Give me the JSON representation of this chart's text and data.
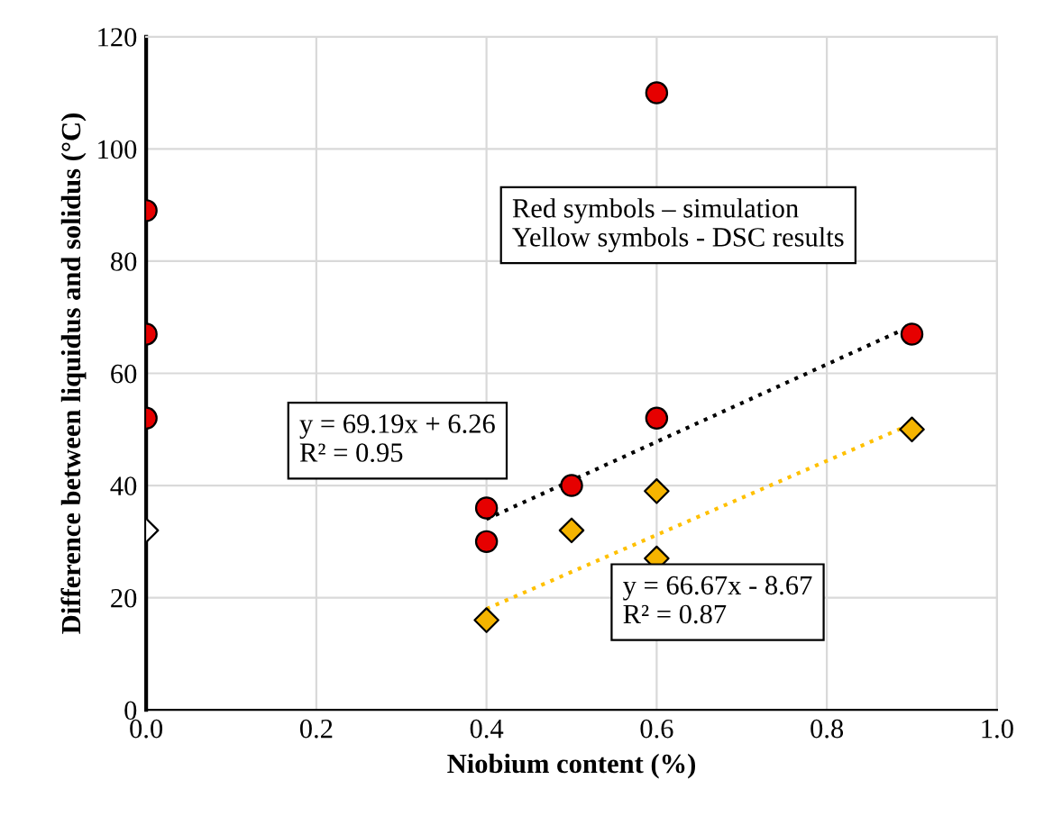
{
  "chart_data": {
    "type": "scatter",
    "xlabel": "Niobium content (%)",
    "ylabel": "Difference between liquidus and solidus (°C)",
    "xlim": [
      0,
      1.0
    ],
    "ylim": [
      0,
      120
    ],
    "xticks": [
      {
        "value": 0,
        "label": "0.0"
      },
      0.2,
      0.4,
      0.6,
      0.8,
      {
        "value": 1.0,
        "label": "1.0"
      }
    ],
    "yticks": [
      0,
      20,
      40,
      60,
      80,
      100,
      120
    ],
    "grid": true,
    "series": [
      {
        "marker": "circle",
        "color": "#e60000",
        "x": [
          0,
          0,
          0,
          0.4,
          0.4,
          0.5,
          0.6,
          0.6,
          0.9
        ],
        "values": [
          89,
          67,
          52,
          36,
          30,
          40,
          110,
          52,
          67
        ]
      },
      {
        "marker": "diamond",
        "color": "#f5b400",
        "colors": [
          "#ffffff",
          "#f5b400",
          "#f5b400",
          "#f5b400",
          "#f5b400",
          "#f5b400"
        ],
        "x": [
          0,
          0.4,
          0.5,
          0.6,
          0.6,
          0.9
        ],
        "values": [
          32,
          16,
          32,
          39,
          27,
          50
        ]
      },
      {
        "type": "line",
        "marker": "none",
        "line_style": "dotted",
        "color": "#000000",
        "x": [
          0.4,
          0.9
        ],
        "values": [
          34,
          68.5
        ]
      },
      {
        "type": "line",
        "marker": "none",
        "line_style": "dotted",
        "color": "#ffc000",
        "x": [
          0.4,
          0.9
        ],
        "values": [
          18,
          51
        ]
      }
    ],
    "annotations": [
      "y = 69.19x + 6.26\nR² = 0.95",
      "y = 66.67x - 8.67\nR² = 0.87",
      "Red symbols – simulation\nYellow symbols - DSC results"
    ]
  }
}
